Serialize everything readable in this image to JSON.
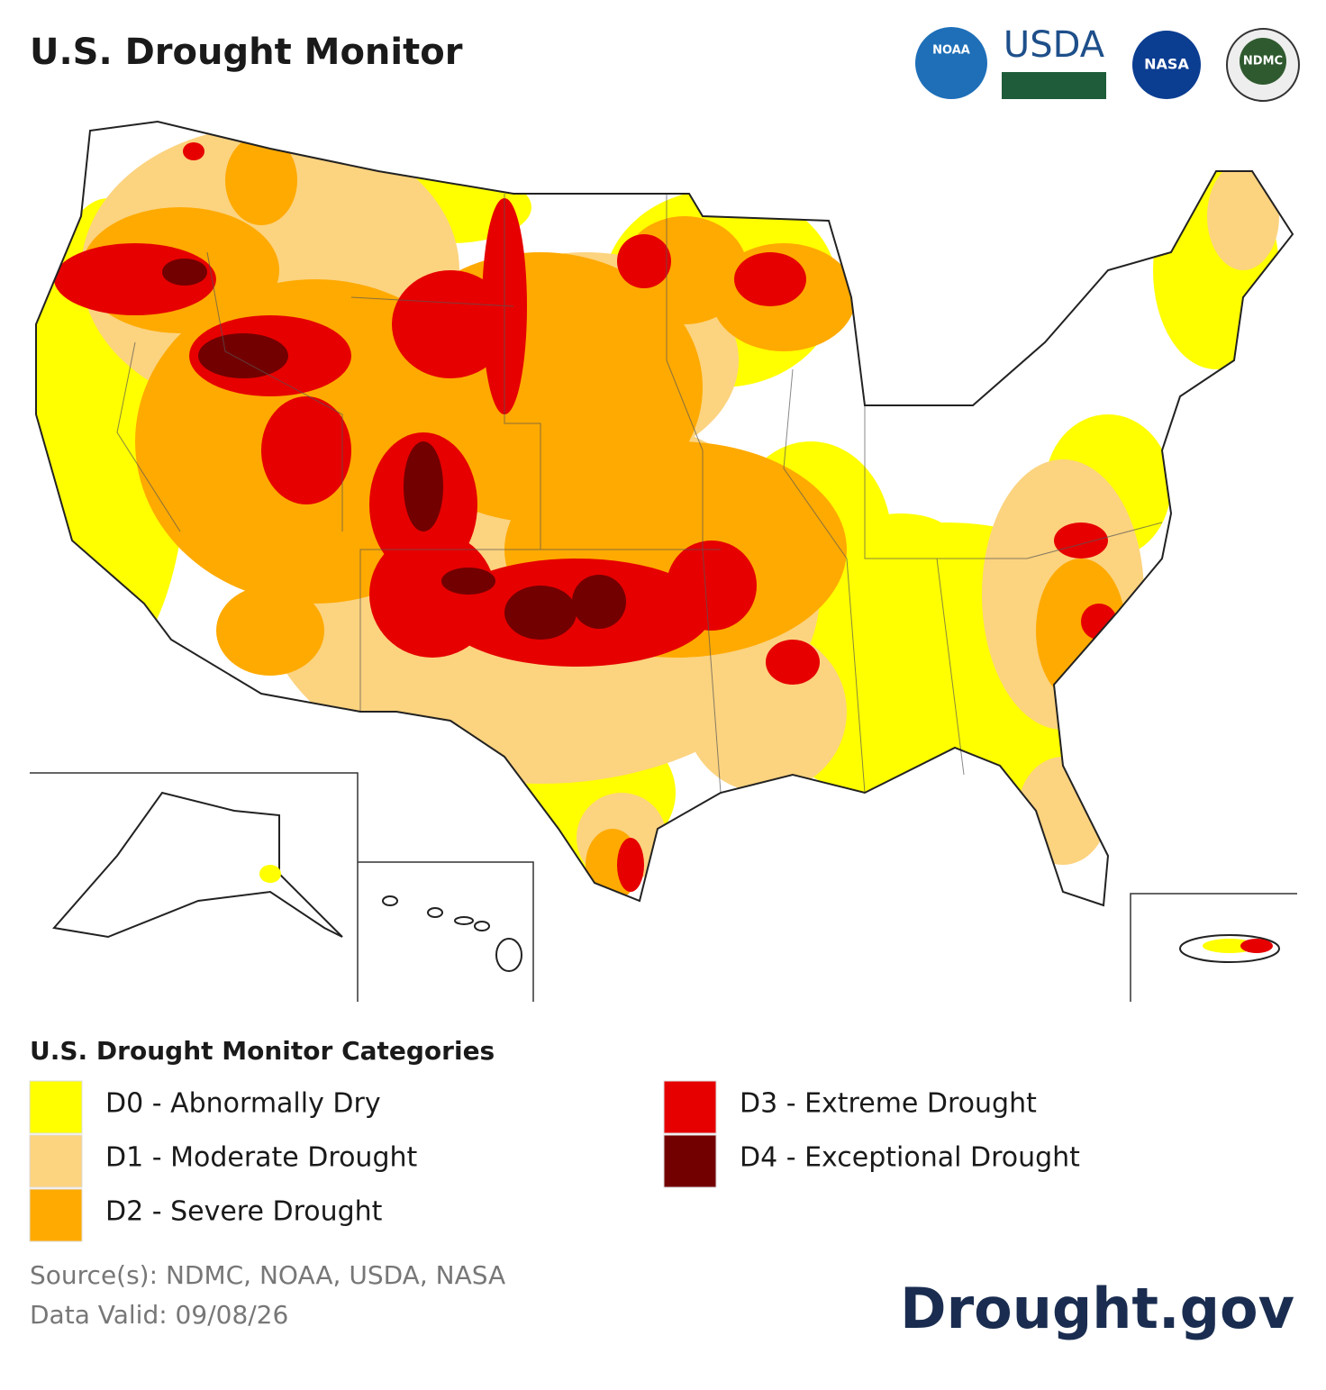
{
  "header": {
    "title": "U.S. Drought Monitor",
    "logos": [
      "NOAA",
      "USDA",
      "NASA",
      "NDMC"
    ]
  },
  "legend": {
    "title": "U.S. Drought Monitor Categories",
    "items": [
      {
        "label": "D0 - Abnormally Dry",
        "color": "#ffff00"
      },
      {
        "label": "D1 - Moderate Drought",
        "color": "#fcd37f"
      },
      {
        "label": "D2 - Severe Drought",
        "color": "#ffaa00"
      },
      {
        "label": "D3 - Extreme Drought",
        "color": "#e60000"
      },
      {
        "label": "D4 - Exceptional Drought",
        "color": "#730000"
      }
    ]
  },
  "footer": {
    "source": "Source(s): NDMC, NOAA, USDA, NASA",
    "date": "Data Valid: 09/08/26",
    "brand": "Drought.gov"
  }
}
